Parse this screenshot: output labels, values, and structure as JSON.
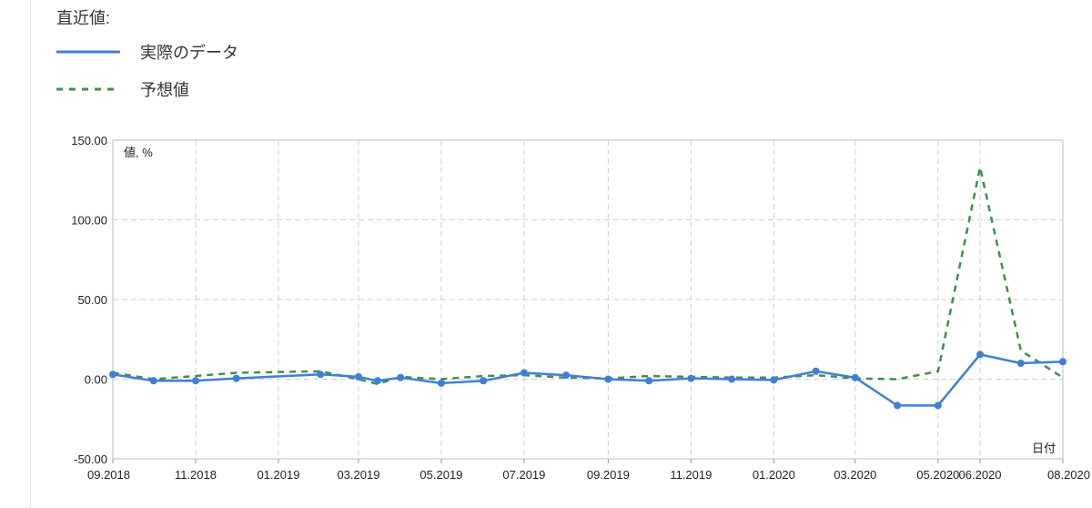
{
  "legend": {
    "title": "直近値:",
    "items": [
      {
        "label": "実際のデータ",
        "color": "#3f7fd6",
        "style": "solid"
      },
      {
        "label": "予想値",
        "color": "#3f8f4f",
        "style": "dashed"
      }
    ]
  },
  "chart_data": {
    "type": "line",
    "ylabel": "値, %",
    "xlabel": "日付",
    "ylim": [
      -50,
      150
    ],
    "yticks": [
      "150.00",
      "100.00",
      "50.00",
      "0.00",
      "-50.00"
    ],
    "x_ticks": [
      "09.2018",
      "11.2018",
      "01.2019",
      "03.2019",
      "05.2019",
      "07.2019",
      "09.2019",
      "11.2019",
      "01.2020",
      "03.2020",
      "05.2020",
      "06.2020",
      "08.2020"
    ],
    "grid": true,
    "series": [
      {
        "name": "実際のデータ",
        "color": "#3f7fd6",
        "points": [
          [
            "2018-09-01",
            3.0
          ],
          [
            "2018-10-01",
            -1.0
          ],
          [
            "2018-11-01",
            -1.0
          ],
          [
            "2018-12-01",
            0.5
          ],
          [
            "2019-02-01",
            3.0
          ],
          [
            "2019-03-01",
            1.5
          ],
          [
            "2019-03-15",
            -1.0
          ],
          [
            "2019-04-01",
            1.0
          ],
          [
            "2019-05-01",
            -2.5
          ],
          [
            "2019-06-01",
            -1.0
          ],
          [
            "2019-07-01",
            4.0
          ],
          [
            "2019-08-01",
            2.5
          ],
          [
            "2019-09-01",
            0.0
          ],
          [
            "2019-10-01",
            -1.0
          ],
          [
            "2019-11-01",
            0.5
          ],
          [
            "2019-12-01",
            0.0
          ],
          [
            "2020-01-01",
            -0.5
          ],
          [
            "2020-02-01",
            5.0
          ],
          [
            "2020-03-01",
            1.0
          ],
          [
            "2020-04-01",
            -16.5
          ],
          [
            "2020-05-01",
            -16.5
          ],
          [
            "2020-06-01",
            15.5
          ],
          [
            "2020-07-01",
            10.0
          ],
          [
            "2020-08-01",
            11.0
          ]
        ]
      },
      {
        "name": "予想値",
        "color": "#3f8f4f",
        "points": [
          [
            "2018-09-01",
            4.0
          ],
          [
            "2018-10-01",
            0.0
          ],
          [
            "2018-11-01",
            2.0
          ],
          [
            "2018-12-01",
            4.0
          ],
          [
            "2019-01-01",
            4.5
          ],
          [
            "2019-02-01",
            5.0
          ],
          [
            "2019-03-01",
            0.0
          ],
          [
            "2019-03-15",
            -3.0
          ],
          [
            "2019-04-01",
            1.5
          ],
          [
            "2019-05-01",
            0.0
          ],
          [
            "2019-06-01",
            2.0
          ],
          [
            "2019-07-01",
            2.5
          ],
          [
            "2019-08-01",
            1.0
          ],
          [
            "2019-09-01",
            0.5
          ],
          [
            "2019-10-01",
            2.0
          ],
          [
            "2019-11-01",
            1.5
          ],
          [
            "2019-12-01",
            1.0
          ],
          [
            "2020-01-01",
            1.0
          ],
          [
            "2020-02-01",
            2.5
          ],
          [
            "2020-03-01",
            0.5
          ],
          [
            "2020-04-01",
            0.0
          ],
          [
            "2020-05-01",
            5.0
          ],
          [
            "2020-06-01",
            133.0
          ],
          [
            "2020-07-01",
            18.0
          ],
          [
            "2020-08-01",
            1.0
          ]
        ]
      }
    ]
  }
}
